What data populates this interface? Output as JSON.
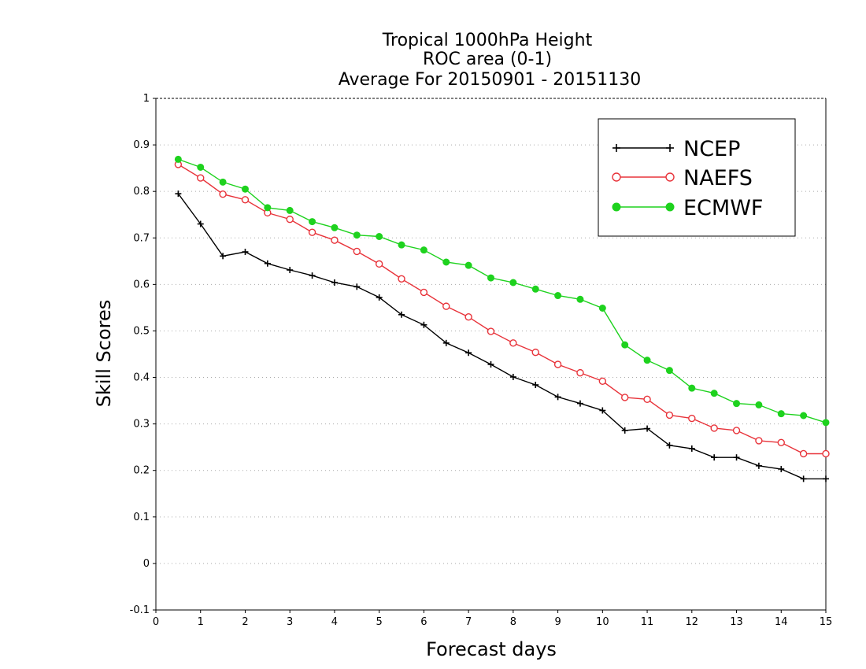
{
  "chart_data": {
    "type": "line",
    "title": [
      "Tropical 1000hPa Height",
      "ROC area (0-1)",
      "Average For 20150901 - 20151130"
    ],
    "xlabel": "Forecast days",
    "ylabel": "Skill Scores",
    "xlim": [
      0,
      15
    ],
    "ylim": [
      -0.1,
      1
    ],
    "xticks": [
      0,
      1,
      2,
      3,
      4,
      5,
      6,
      7,
      8,
      9,
      10,
      11,
      12,
      13,
      14,
      15
    ],
    "yticks": [
      -0.1,
      0,
      0.1,
      0.2,
      0.3,
      0.4,
      0.5,
      0.6,
      0.7,
      0.8,
      0.9,
      1
    ],
    "ytick_labels": [
      "-0.1",
      "0",
      "0.1",
      "0.2",
      "0.3",
      "0.4",
      "0.5",
      "0.6",
      "0.7",
      "0.8",
      "0.9",
      "1"
    ],
    "grid": "horizontal-dotted",
    "legend_position": "top-right",
    "x": [
      0.5,
      1,
      1.5,
      2,
      2.5,
      3,
      3.5,
      4,
      4.5,
      5,
      5.5,
      6,
      6.5,
      7,
      7.5,
      8,
      8.5,
      9,
      9.5,
      10,
      10.5,
      11,
      11.5,
      12,
      12.5,
      13,
      13.5,
      14,
      14.5,
      15
    ],
    "series": [
      {
        "name": "NCEP",
        "color": "#000000",
        "marker": "plus",
        "values": [
          0.795,
          0.73,
          0.661,
          0.67,
          0.645,
          0.631,
          0.619,
          0.604,
          0.595,
          0.572,
          0.535,
          0.513,
          0.474,
          0.453,
          0.428,
          0.401,
          0.384,
          0.358,
          0.344,
          0.329,
          0.286,
          0.29,
          0.254,
          0.247,
          0.228,
          0.228,
          0.21,
          0.203,
          0.182,
          0.182
        ]
      },
      {
        "name": "NAEFS",
        "color": "#e8333a",
        "marker": "open-circle",
        "values": [
          0.858,
          0.829,
          0.794,
          0.782,
          0.754,
          0.74,
          0.712,
          0.695,
          0.671,
          0.644,
          0.612,
          0.583,
          0.553,
          0.53,
          0.499,
          0.474,
          0.454,
          0.428,
          0.41,
          0.392,
          0.357,
          0.353,
          0.319,
          0.312,
          0.291,
          0.286,
          0.264,
          0.26,
          0.236,
          0.236
        ]
      },
      {
        "name": "ECMWF",
        "color": "#1ed21e",
        "marker": "filled-circle",
        "values": [
          0.869,
          0.852,
          0.82,
          0.805,
          0.765,
          0.759,
          0.735,
          0.722,
          0.706,
          0.703,
          0.685,
          0.674,
          0.648,
          0.641,
          0.614,
          0.604,
          0.59,
          0.576,
          0.568,
          0.549,
          0.47,
          0.437,
          0.415,
          0.377,
          0.366,
          0.344,
          0.341,
          0.322,
          0.318,
          0.303
        ]
      }
    ]
  }
}
